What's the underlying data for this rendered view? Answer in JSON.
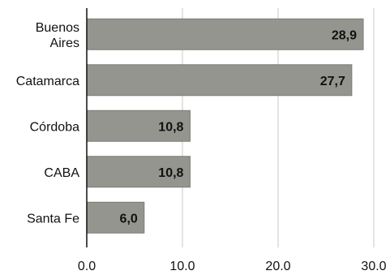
{
  "chart_data": {
    "type": "bar",
    "orientation": "horizontal",
    "categories": [
      [
        "Buenos",
        "Aires"
      ],
      [
        "Catamarca"
      ],
      [
        "Córdoba"
      ],
      [
        "CABA"
      ],
      [
        "Santa Fe"
      ]
    ],
    "values": [
      28.9,
      27.7,
      10.8,
      10.8,
      6.0
    ],
    "data_labels": [
      "28,9",
      "27,7",
      "10,8",
      "10,8",
      "6,0"
    ],
    "x_ticks": [
      0,
      10,
      20,
      30
    ],
    "x_tick_labels": [
      "0.0",
      "10.0",
      "20.0",
      "30.0"
    ],
    "xlim": [
      0,
      30
    ],
    "grid": "vertical",
    "legend": "none",
    "colors": {
      "bar": "#95958f",
      "bar_edge": "#7c7c77",
      "grid": "#c8c8c8",
      "axis": "#111111"
    }
  }
}
